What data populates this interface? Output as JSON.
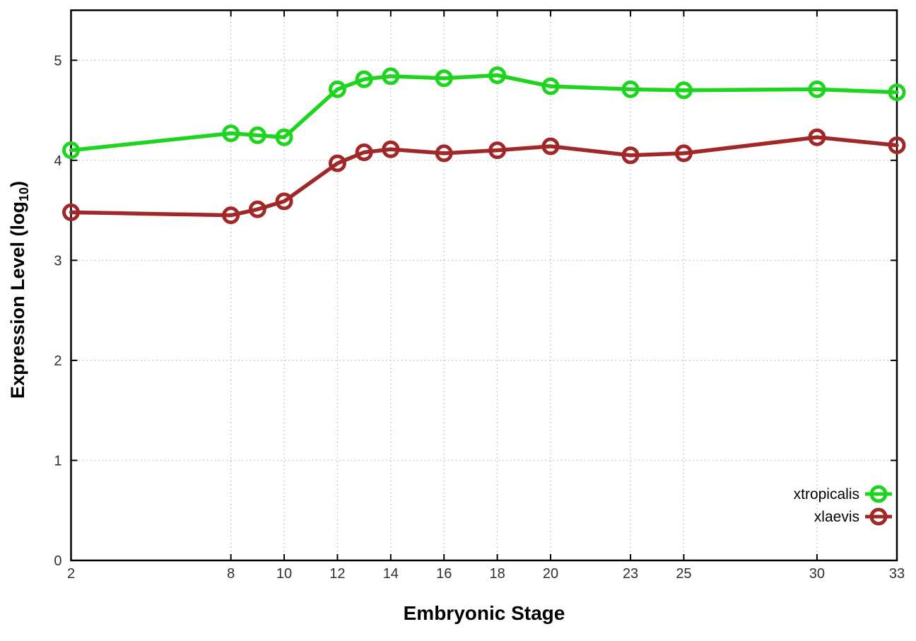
{
  "chart_data": {
    "type": "line",
    "title": "",
    "xlabel": "Embryonic Stage",
    "ylabel": "Expression Level (log10)",
    "ylabel_parts": {
      "main": "Expression Level (log",
      "sub": "10",
      "end": ")"
    },
    "x": [
      2,
      8,
      9,
      10,
      12,
      13,
      14,
      16,
      18,
      20,
      23,
      25,
      30,
      33
    ],
    "series": [
      {
        "name": "xtropicalis",
        "color": "#1ed41e",
        "values": [
          4.1,
          4.27,
          4.25,
          4.23,
          4.71,
          4.81,
          4.84,
          4.82,
          4.85,
          4.74,
          4.71,
          4.7,
          4.71,
          4.68
        ]
      },
      {
        "name": "xlaevis",
        "color": "#a02828",
        "values": [
          3.48,
          3.45,
          3.51,
          3.59,
          3.97,
          4.08,
          4.11,
          4.07,
          4.1,
          4.14,
          4.05,
          4.07,
          4.23,
          4.15
        ]
      }
    ],
    "x_ticks": [
      2,
      8,
      10,
      12,
      14,
      16,
      18,
      20,
      23,
      25,
      30,
      33
    ],
    "x_tick_labels": [
      "2",
      "8",
      "10",
      "12",
      "14",
      "16",
      "18",
      "20",
      "23",
      "25",
      "30",
      "33"
    ],
    "y_ticks": [
      0,
      1,
      2,
      3,
      4,
      5
    ],
    "y_tick_labels": [
      "0",
      "1",
      "2",
      "3",
      "4",
      "5"
    ],
    "xlim": [
      2,
      33
    ],
    "ylim": [
      0,
      5.5
    ],
    "grid": true,
    "legend_position": "bottom-right",
    "legend": [
      "xtropicalis",
      "xlaevis"
    ]
  },
  "colors": {
    "background": "#ffffff",
    "frame": "#000000",
    "grid": "#b5b5b5",
    "tick_label": "#303030",
    "axis_title": "#000000",
    "legend_text": "#000000"
  }
}
